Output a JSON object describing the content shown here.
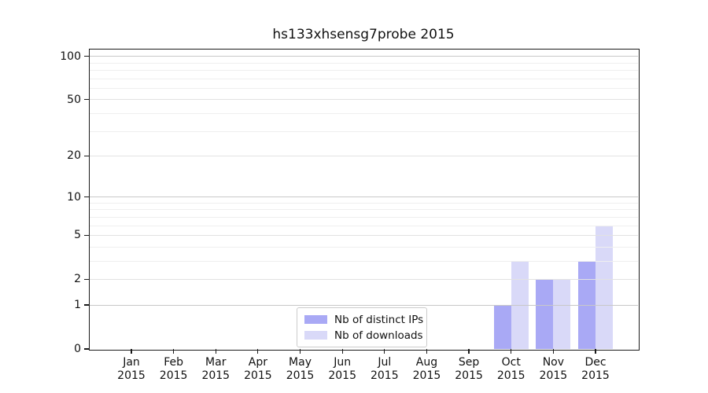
{
  "chart_data": {
    "type": "bar",
    "title": "hs133xhsensg7probe 2015",
    "categories": [
      "Jan",
      "Feb",
      "Mar",
      "Apr",
      "May",
      "Jun",
      "Jul",
      "Aug",
      "Sep",
      "Oct",
      "Nov",
      "Dec"
    ],
    "x_tick_year": "2015",
    "series": [
      {
        "name": "Nb of distinct IPs",
        "color": "#a9a9f5",
        "values": [
          0,
          0,
          0,
          0,
          0,
          0,
          0,
          0,
          0,
          1,
          2,
          3
        ]
      },
      {
        "name": "Nb of downloads",
        "color": "#d9d9f8",
        "values": [
          0,
          0,
          0,
          0,
          0,
          0,
          0,
          0,
          0,
          3,
          2,
          6
        ]
      }
    ],
    "y_axis": {
      "scale": "log1p",
      "tick_labels": [
        "0",
        "1",
        "2",
        "5",
        "10",
        "20",
        "50",
        "100"
      ],
      "tick_values": [
        0,
        1,
        2,
        5,
        10,
        20,
        50,
        100
      ],
      "minor_tick_values": [
        3,
        4,
        6,
        7,
        8,
        9,
        30,
        40,
        60,
        70,
        80,
        90
      ],
      "max": 113
    },
    "grid": {
      "orientation": "horizontal",
      "power_values": [
        1,
        10,
        100
      ],
      "power_color": "#c8c8c8",
      "labeled_color": "#e2e2e2",
      "minor_color": "#efefef"
    },
    "legend": {
      "position": "lower center"
    },
    "colors": {
      "axis": "#1a1a1a",
      "text": "#111111",
      "background": "#ffffff"
    }
  }
}
